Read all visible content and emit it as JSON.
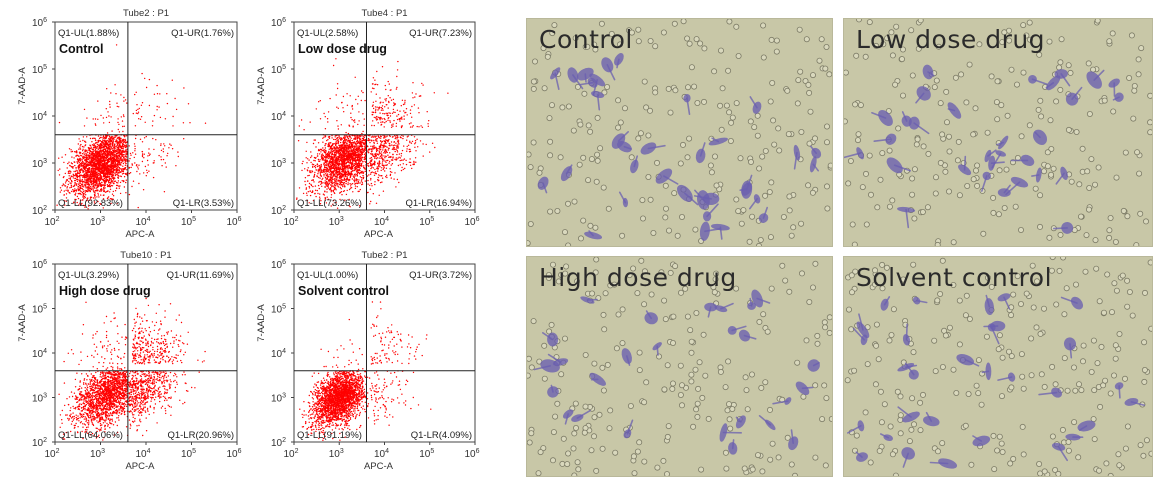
{
  "chart_data": [
    {
      "type": "scatter",
      "title": "Tube2 : P1",
      "group_label": "Control",
      "xlabel": "APC-A",
      "ylabel": "7-AAD-A",
      "x_scale": "log",
      "y_scale": "log",
      "xlim": [
        100,
        1000000
      ],
      "ylim": [
        100,
        1000000
      ],
      "quadrants": {
        "UL": "Q1-UL(1.88%)",
        "UR": "Q1-UR(1.76%)",
        "LL": "Q1-LL(92.83%)",
        "LR": "Q1-LR(3.53%)"
      },
      "quadrant_percent": {
        "UL": 1.88,
        "UR": 1.76,
        "LL": 92.83,
        "LR": 3.53
      },
      "gate": {
        "x": 4000,
        "y": 4000
      },
      "point_color": "#ff0000"
    },
    {
      "type": "scatter",
      "title": "Tube4 : P1",
      "group_label": "Low dose drug",
      "xlabel": "APC-A",
      "ylabel": "7-AAD-A",
      "x_scale": "log",
      "y_scale": "log",
      "xlim": [
        100,
        1000000
      ],
      "ylim": [
        100,
        1000000
      ],
      "quadrants": {
        "UL": "Q1-UL(2.58%)",
        "UR": "Q1-UR(7.23%)",
        "LL": "Q1-LL(73.26%)",
        "LR": "Q1-LR(16.94%)"
      },
      "quadrant_percent": {
        "UL": 2.58,
        "UR": 7.23,
        "LL": 73.26,
        "LR": 16.94
      },
      "gate": {
        "x": 4000,
        "y": 4000
      },
      "point_color": "#ff0000"
    },
    {
      "type": "scatter",
      "title": "Tube10 : P1",
      "group_label": "High dose drug",
      "xlabel": "APC-A",
      "ylabel": "7-AAD-A",
      "x_scale": "log",
      "y_scale": "log",
      "xlim": [
        100,
        1000000
      ],
      "ylim": [
        100,
        1000000
      ],
      "quadrants": {
        "UL": "Q1-UL(3.29%)",
        "UR": "Q1-UR(11.69%)",
        "LL": "Q1-LL(64.06%)",
        "LR": "Q1-LR(20.96%)"
      },
      "quadrant_percent": {
        "UL": 3.29,
        "UR": 11.69,
        "LL": 64.06,
        "LR": 20.96
      },
      "gate": {
        "x": 4000,
        "y": 4000
      },
      "point_color": "#ff0000"
    },
    {
      "type": "scatter",
      "title": "Tube2 : P1",
      "group_label": "Solvent control",
      "xlabel": "APC-A",
      "ylabel": "7-AAD-A",
      "x_scale": "log",
      "y_scale": "log",
      "xlim": [
        100,
        1000000
      ],
      "ylim": [
        100,
        1000000
      ],
      "quadrants": {
        "UL": "Q1-UL(1.00%)",
        "UR": "Q1-UR(3.72%)",
        "LL": "Q1-LL(91.19%)",
        "LR": "Q1-LR(4.09%)"
      },
      "quadrant_percent": {
        "UL": 1.0,
        "UR": 3.72,
        "LL": 91.19,
        "LR": 4.09
      },
      "gate": {
        "x": 4000,
        "y": 4000
      },
      "point_color": "#ff0000"
    }
  ],
  "tick_values": [
    100,
    1000,
    10000,
    100000,
    1000000
  ],
  "tick_labels": {
    "base": "10",
    "exponents": [
      "2",
      "3",
      "4",
      "5",
      "6"
    ]
  },
  "micrographs": [
    {
      "label": "Control",
      "cell_color": "#6a5fb0"
    },
    {
      "label": "Low dose drug",
      "cell_color": "#6a5fb0"
    },
    {
      "label": "High dose drug",
      "cell_color": "#6a5fb0"
    },
    {
      "label": "Solvent control",
      "cell_color": "#6a5fb0"
    }
  ]
}
